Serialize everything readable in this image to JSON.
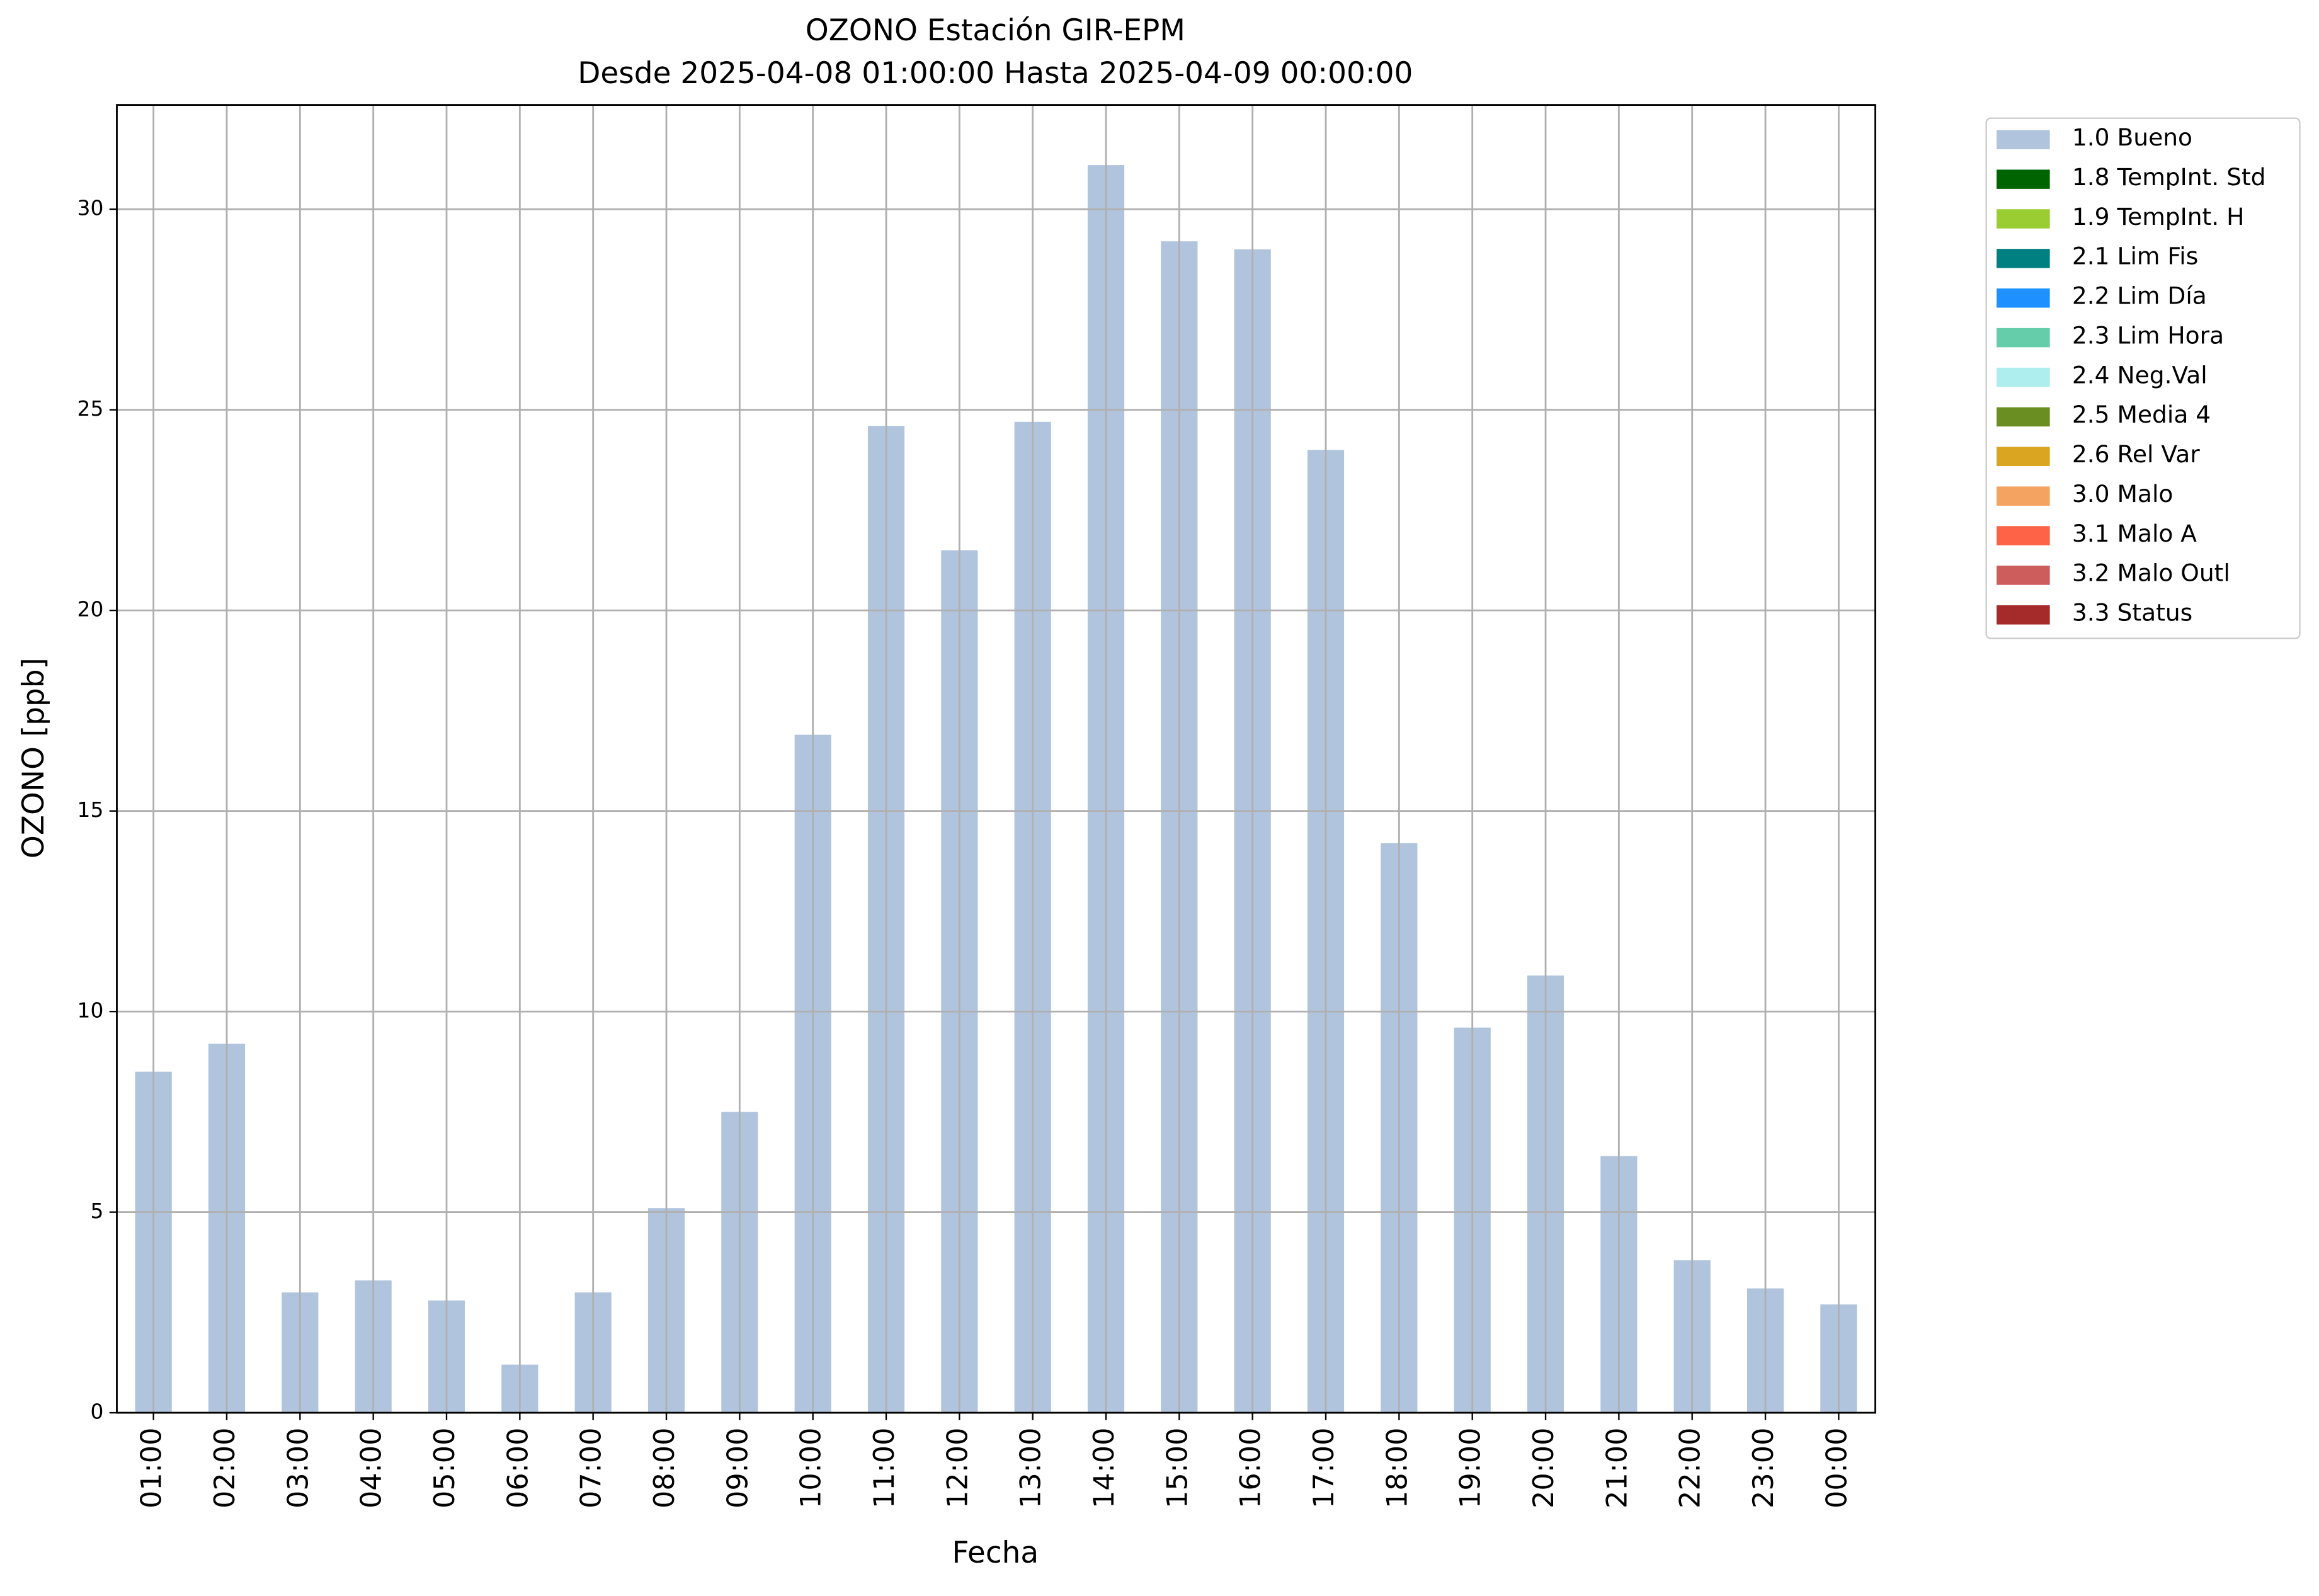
{
  "chart_data": {
    "type": "stacked_bar",
    "title": "OZONO Estación GIR-EPM",
    "subtitle": "Desde 2025-04-08 01:00:00 Hasta 2025-04-09 00:00:00",
    "x_label": "Fecha",
    "y_label": "OZONO [ppb]",
    "categories": [
      "01:00",
      "02:00",
      "03:00",
      "04:00",
      "05:00",
      "06:00",
      "07:00",
      "08:00",
      "09:00",
      "10:00",
      "11:00",
      "12:00",
      "13:00",
      "14:00",
      "15:00",
      "16:00",
      "17:00",
      "18:00",
      "19:00",
      "20:00",
      "21:00",
      "22:00",
      "23:00",
      "00:00"
    ],
    "series": [
      {
        "name": "1.0 Bueno",
        "color": "#b0c4de",
        "values": [
          8.5,
          9.2,
          3.0,
          3.3,
          2.8,
          1.2,
          3.0,
          5.1,
          7.5,
          16.9,
          24.6,
          21.5,
          24.7,
          31.1,
          29.2,
          29.0,
          24.0,
          14.2,
          9.6,
          10.9,
          6.4,
          3.8,
          3.1,
          2.7
        ]
      },
      {
        "name": "1.8 TempInt. Std",
        "color": "#006400",
        "values": [
          0,
          0,
          0,
          0,
          0,
          0,
          0,
          0,
          0,
          0,
          0,
          0,
          0,
          0,
          0,
          0,
          0,
          0,
          0,
          0,
          0,
          0,
          0,
          0
        ]
      },
      {
        "name": "1.9 TempInt. H",
        "color": "#9acd32",
        "values": [
          0,
          0,
          0,
          0,
          0,
          0,
          0,
          0,
          0,
          0,
          0,
          0,
          0,
          0,
          0,
          0,
          0,
          0,
          0,
          0,
          0,
          0,
          0,
          0
        ]
      },
      {
        "name": "2.1 Lim Fis",
        "color": "#008080",
        "values": [
          0,
          0,
          0,
          0,
          0,
          0,
          0,
          0,
          0,
          0,
          0,
          0,
          0,
          0,
          0,
          0,
          0,
          0,
          0,
          0,
          0,
          0,
          0,
          0
        ]
      },
      {
        "name": "2.2 Lim Día",
        "color": "#1e90ff",
        "values": [
          0,
          0,
          0,
          0,
          0,
          0,
          0,
          0,
          0,
          0,
          0,
          0,
          0,
          0,
          0,
          0,
          0,
          0,
          0,
          0,
          0,
          0,
          0,
          0
        ]
      },
      {
        "name": "2.3 Lim Hora",
        "color": "#66cdaa",
        "values": [
          0,
          0,
          0,
          0,
          0,
          0,
          0,
          0,
          0,
          0,
          0,
          0,
          0,
          0,
          0,
          0,
          0,
          0,
          0,
          0,
          0,
          0,
          0,
          0
        ]
      },
      {
        "name": "2.4 Neg.Val",
        "color": "#afeeee",
        "values": [
          0,
          0,
          0,
          0,
          0,
          0,
          0,
          0,
          0,
          0,
          0,
          0,
          0,
          0,
          0,
          0,
          0,
          0,
          0,
          0,
          0,
          0,
          0,
          0
        ]
      },
      {
        "name": "2.5 Media 4",
        "color": "#6b8e23",
        "values": [
          0,
          0,
          0,
          0,
          0,
          0,
          0,
          0,
          0,
          0,
          0,
          0,
          0,
          0,
          0,
          0,
          0,
          0,
          0,
          0,
          0,
          0,
          0,
          0
        ]
      },
      {
        "name": "2.6 Rel Var",
        "color": "#daa520",
        "values": [
          0,
          0,
          0,
          0,
          0,
          0,
          0,
          0,
          0,
          0,
          0,
          0,
          0,
          0,
          0,
          0,
          0,
          0,
          0,
          0,
          0,
          0,
          0,
          0
        ]
      },
      {
        "name": "3.0 Malo",
        "color": "#f4a460",
        "values": [
          0,
          0,
          0,
          0,
          0,
          0,
          0,
          0,
          0,
          0,
          0,
          0,
          0,
          0,
          0,
          0,
          0,
          0,
          0,
          0,
          0,
          0,
          0,
          0
        ]
      },
      {
        "name": "3.1 Malo A",
        "color": "#ff6347",
        "values": [
          0,
          0,
          0,
          0,
          0,
          0,
          0,
          0,
          0,
          0,
          0,
          0,
          0,
          0,
          0,
          0,
          0,
          0,
          0,
          0,
          0,
          0,
          0,
          0
        ]
      },
      {
        "name": "3.2 Malo Outl",
        "color": "#cd5c5c",
        "values": [
          0,
          0,
          0,
          0,
          0,
          0,
          0,
          0,
          0,
          0,
          0,
          0,
          0,
          0,
          0,
          0,
          0,
          0,
          0,
          0,
          0,
          0,
          0,
          0
        ]
      },
      {
        "name": "3.3 Status",
        "color": "#a52a2a",
        "values": [
          0,
          0,
          0,
          0,
          0,
          0,
          0,
          0,
          0,
          0,
          0,
          0,
          0,
          0,
          0,
          0,
          0,
          0,
          0,
          0,
          0,
          0,
          0,
          0
        ]
      }
    ],
    "ylim": [
      0,
      32.6
    ],
    "yticks": [
      0,
      5,
      10,
      15,
      20,
      25,
      30
    ],
    "grid": true,
    "legend": "outside-upper-right"
  }
}
